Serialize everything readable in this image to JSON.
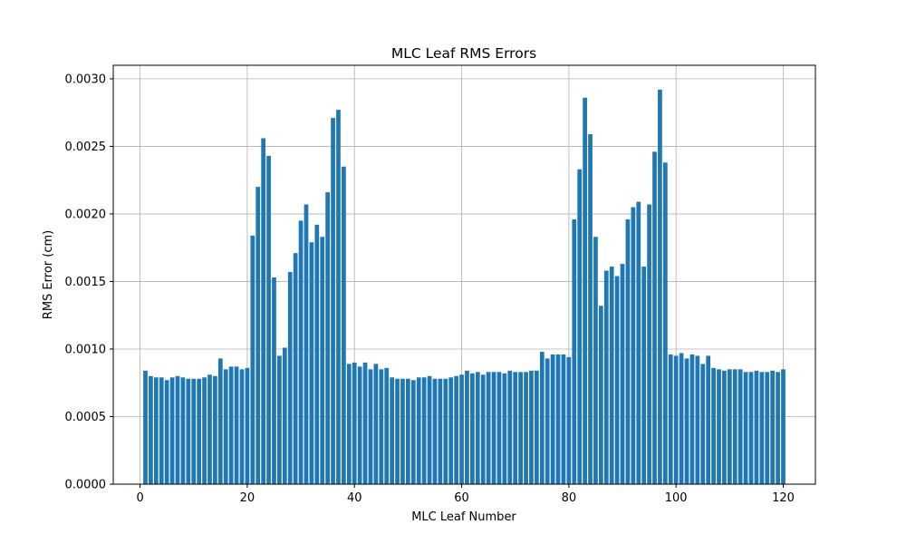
{
  "chart_data": {
    "type": "bar",
    "title": "MLC Leaf RMS Errors",
    "xlabel": "MLC Leaf Number",
    "ylabel": "RMS Error (cm)",
    "xlim": [
      -5.0,
      126.0
    ],
    "ylim": [
      0.0,
      0.0031
    ],
    "xticks": [
      0,
      20,
      40,
      60,
      80,
      100,
      120
    ],
    "xtick_labels": [
      "0",
      "20",
      "40",
      "60",
      "80",
      "100",
      "120"
    ],
    "yticks": [
      0.0,
      0.0005,
      0.001,
      0.0015,
      0.002,
      0.0025,
      0.003
    ],
    "ytick_labels": [
      "0.0000",
      "0.0005",
      "0.0010",
      "0.0015",
      "0.0020",
      "0.0025",
      "0.0030"
    ],
    "grid": true,
    "bar_color": "#1f77b4",
    "x": [
      1,
      2,
      3,
      4,
      5,
      6,
      7,
      8,
      9,
      10,
      11,
      12,
      13,
      14,
      15,
      16,
      17,
      18,
      19,
      20,
      21,
      22,
      23,
      24,
      25,
      26,
      27,
      28,
      29,
      30,
      31,
      32,
      33,
      34,
      35,
      36,
      37,
      38,
      39,
      40,
      41,
      42,
      43,
      44,
      45,
      46,
      47,
      48,
      49,
      50,
      51,
      52,
      53,
      54,
      55,
      56,
      57,
      58,
      59,
      60,
      61,
      62,
      63,
      64,
      65,
      66,
      67,
      68,
      69,
      70,
      71,
      72,
      73,
      74,
      75,
      76,
      77,
      78,
      79,
      80,
      81,
      82,
      83,
      84,
      85,
      86,
      87,
      88,
      89,
      90,
      91,
      92,
      93,
      94,
      95,
      96,
      97,
      98,
      99,
      100,
      101,
      102,
      103,
      104,
      105,
      106,
      107,
      108,
      109,
      110,
      111,
      112,
      113,
      114,
      115,
      116,
      117,
      118,
      119,
      120
    ],
    "values": [
      0.00084,
      0.0008,
      0.00079,
      0.00079,
      0.00077,
      0.00079,
      0.0008,
      0.00079,
      0.00078,
      0.00078,
      0.00078,
      0.00079,
      0.00081,
      0.0008,
      0.00093,
      0.00085,
      0.00087,
      0.00087,
      0.00085,
      0.00086,
      0.00184,
      0.0022,
      0.00256,
      0.00243,
      0.00153,
      0.00095,
      0.00101,
      0.00157,
      0.00171,
      0.00195,
      0.00207,
      0.00179,
      0.00192,
      0.00183,
      0.00216,
      0.00271,
      0.00277,
      0.00235,
      0.00089,
      0.0009,
      0.00087,
      0.0009,
      0.00085,
      0.00089,
      0.00085,
      0.00086,
      0.00079,
      0.00078,
      0.00078,
      0.00078,
      0.00077,
      0.00079,
      0.00079,
      0.0008,
      0.00078,
      0.00078,
      0.00078,
      0.00079,
      0.0008,
      0.00081,
      0.00084,
      0.00082,
      0.00083,
      0.00081,
      0.00083,
      0.00083,
      0.00083,
      0.00082,
      0.00084,
      0.00083,
      0.00083,
      0.00083,
      0.00084,
      0.00084,
      0.00098,
      0.00093,
      0.00096,
      0.00096,
      0.00096,
      0.00094,
      0.00196,
      0.00233,
      0.00286,
      0.00259,
      0.00183,
      0.00132,
      0.00158,
      0.00161,
      0.00154,
      0.00163,
      0.00196,
      0.00205,
      0.00209,
      0.00161,
      0.00207,
      0.00246,
      0.00292,
      0.00238,
      0.00096,
      0.00095,
      0.00097,
      0.00093,
      0.00096,
      0.00095,
      0.00089,
      0.00095,
      0.00086,
      0.00085,
      0.00084,
      0.00085,
      0.00085,
      0.00085,
      0.00083,
      0.00083,
      0.00084,
      0.00083,
      0.00083,
      0.00084,
      0.00083,
      0.00085
    ]
  }
}
